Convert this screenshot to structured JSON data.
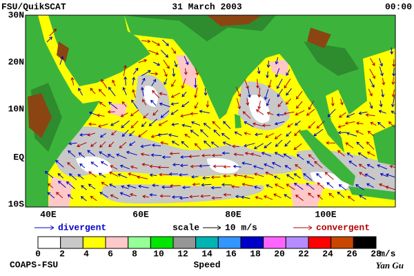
{
  "header": {
    "title": "FSU/QuikSCAT",
    "date": "31 March 2003",
    "time": "00:00"
  },
  "map": {
    "lat_labels": [
      "30N",
      "20N",
      "10N",
      "EQ",
      "10S"
    ],
    "lon_labels": [
      "40E",
      "60E",
      "80E",
      "100E"
    ]
  },
  "legend": {
    "divergent": "divergent",
    "scale": "scale",
    "scale_value": "10 m/s",
    "convergent": "convergent",
    "colorbar": {
      "colors": [
        "#ffffff",
        "#c8c8c8",
        "#ffff00",
        "#ffc8c8",
        "#96ff96",
        "#00e600",
        "#969696",
        "#00b4b4",
        "#3296ff",
        "#0000c8",
        "#ff64ff",
        "#b48cff",
        "#ff0000",
        "#c84600",
        "#000000"
      ],
      "ticks": [
        0,
        2,
        4,
        6,
        8,
        10,
        12,
        14,
        16,
        18,
        20,
        22,
        24,
        26,
        28
      ],
      "unit": "m/s",
      "label": "Speed"
    }
  },
  "footer": {
    "left": "COAPS-FSU",
    "right": "Yan Gu"
  }
}
